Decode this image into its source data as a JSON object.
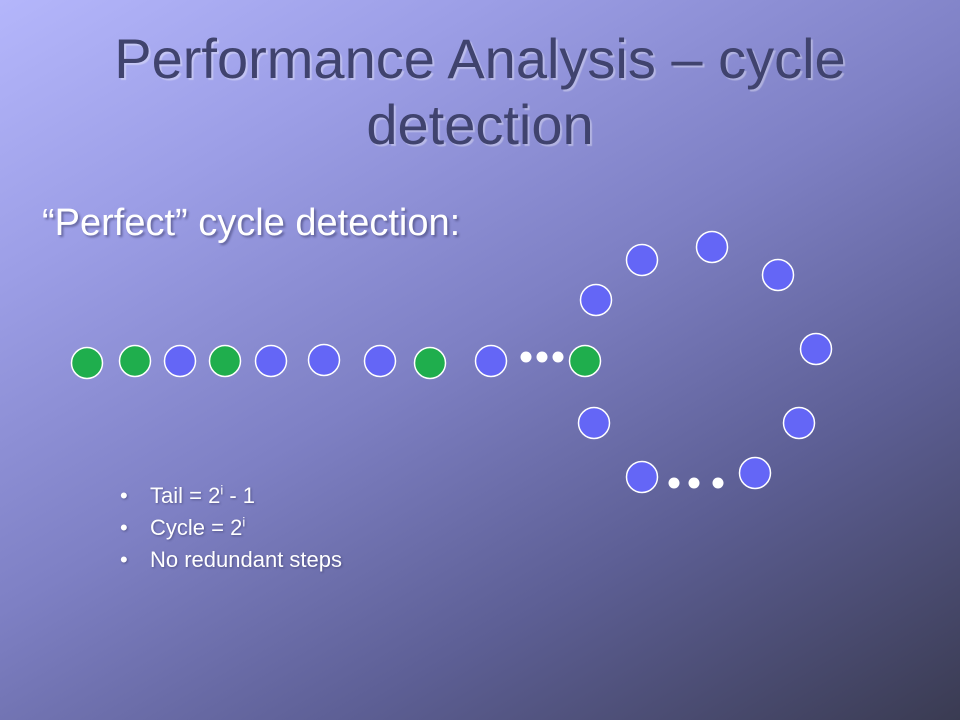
{
  "title": "Performance Analysis – cycle detection",
  "subtitle": "“Perfect” cycle detection:",
  "bullets": [
    {
      "base": "Tail = 2",
      "sup": "i",
      "tail": " - 1"
    },
    {
      "base": "Cycle = 2",
      "sup": "i",
      "tail": ""
    },
    {
      "base": "No redundant steps",
      "sup": "",
      "tail": ""
    }
  ],
  "colors": {
    "blue_node": "#6466f6",
    "green_node": "#1fae4d",
    "ellipsis": "#ffffff"
  },
  "diagram": {
    "tail_nodes": [
      "green",
      "green",
      "blue",
      "green",
      "blue",
      "blue",
      "blue",
      "green",
      "blue"
    ],
    "junction_node": "green",
    "cycle_nodes_count": 11
  }
}
